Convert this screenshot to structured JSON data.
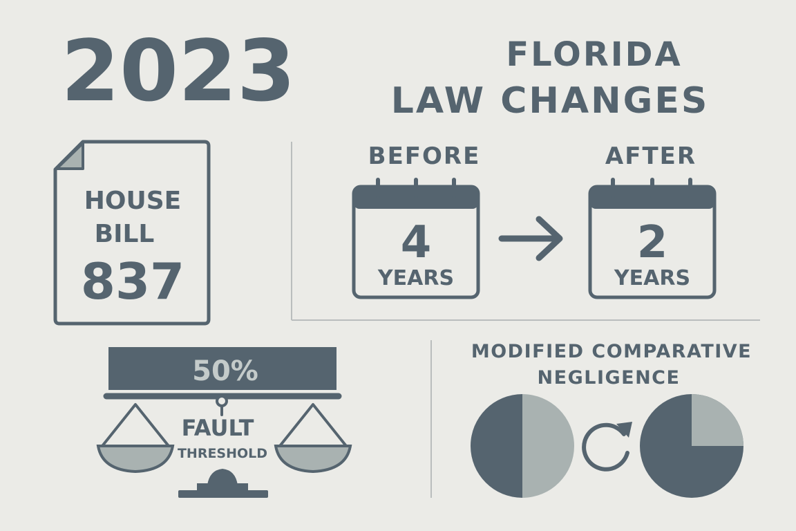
{
  "year": "2023",
  "title": {
    "lines": [
      "FLORIDA",
      "LAW CHANGES"
    ]
  },
  "bill": {
    "lines": [
      "HOUSE",
      "BILL",
      "837"
    ]
  },
  "statute": {
    "before": {
      "label": "BEFORE",
      "number": "4",
      "unit": "YEARS"
    },
    "after": {
      "label": "AFTER",
      "number": "2",
      "unit": "YEARS"
    }
  },
  "fault": {
    "percent": "50%",
    "lines": [
      "FAULT",
      "THRESHOLD"
    ]
  },
  "negligence": {
    "lines": [
      "MODIFIED COMPARATIVE",
      "NEGLIGENCE"
    ]
  }
}
